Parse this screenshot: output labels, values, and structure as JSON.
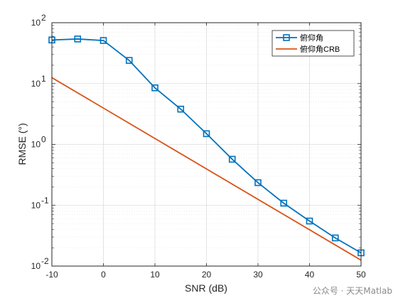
{
  "chart_data": {
    "type": "line",
    "xlabel": "SNR (dB)",
    "ylabel": "RMSE (°)",
    "x_scale": "linear",
    "y_scale": "log",
    "xlim": [
      -10,
      50
    ],
    "ylim": [
      0.01,
      100
    ],
    "x_ticks": [
      -10,
      0,
      10,
      20,
      30,
      40,
      50
    ],
    "y_ticks": [
      {
        "value": 0.01,
        "base": "10",
        "exp": "-2"
      },
      {
        "value": 0.1,
        "base": "10",
        "exp": "-1"
      },
      {
        "value": 1,
        "base": "10",
        "exp": "0"
      },
      {
        "value": 10,
        "base": "10",
        "exp": "1"
      },
      {
        "value": 100,
        "base": "10",
        "exp": "2"
      }
    ],
    "grid": true,
    "minor_grid": true,
    "legend_position": "top-right",
    "series": [
      {
        "name": "俯仰角",
        "color": "#0072BD",
        "marker": "square",
        "x": [
          -10,
          -5,
          0,
          5,
          10,
          15,
          20,
          25,
          30,
          35,
          40,
          45,
          50
        ],
        "y": [
          52,
          54,
          51,
          24,
          8.5,
          3.8,
          1.5,
          0.57,
          0.235,
          0.108,
          0.055,
          0.029,
          0.0165
        ]
      },
      {
        "name": "俯仰角CRB",
        "color": "#D95319",
        "marker": "none",
        "x": [
          -10,
          50
        ],
        "y": [
          12.5,
          0.0125
        ]
      }
    ]
  },
  "watermark": "公众号 · 天天Matlab"
}
